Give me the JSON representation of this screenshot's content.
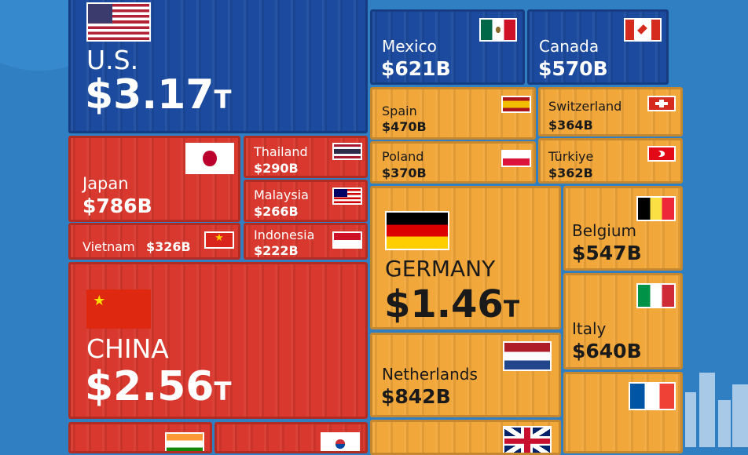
{
  "chart_data": {
    "type": "treemap",
    "items": [
      {
        "country": "U.S.",
        "value": "$3.17T",
        "value_num": 3.17,
        "unit": "T"
      },
      {
        "country": "Mexico",
        "value": "$621B",
        "value_num": 621,
        "unit": "B"
      },
      {
        "country": "Canada",
        "value": "$570B",
        "value_num": 570,
        "unit": "B"
      },
      {
        "country": "Spain",
        "value": "$470B",
        "value_num": 470,
        "unit": "B"
      },
      {
        "country": "Switzerland",
        "value": "$364B",
        "value_num": 364,
        "unit": "B"
      },
      {
        "country": "Poland",
        "value": "$370B",
        "value_num": 370,
        "unit": "B"
      },
      {
        "country": "Türkiye",
        "value": "$362B",
        "value_num": 362,
        "unit": "B"
      },
      {
        "country": "Japan",
        "value": "$786B",
        "value_num": 786,
        "unit": "B"
      },
      {
        "country": "Thailand",
        "value": "$290B",
        "value_num": 290,
        "unit": "B"
      },
      {
        "country": "Malaysia",
        "value": "$266B",
        "value_num": 266,
        "unit": "B"
      },
      {
        "country": "Indonesia",
        "value": "$222B",
        "value_num": 222,
        "unit": "B"
      },
      {
        "country": "Vietnam",
        "value": "$326B",
        "value_num": 326,
        "unit": "B"
      },
      {
        "country": "GERMANY",
        "value": "$1.46T",
        "value_num": 1.46,
        "unit": "T"
      },
      {
        "country": "Belgium",
        "value": "$547B",
        "value_num": 547,
        "unit": "B"
      },
      {
        "country": "Italy",
        "value": "$640B",
        "value_num": 640,
        "unit": "B"
      },
      {
        "country": "CHINA",
        "value": "$2.56T",
        "value_num": 2.56,
        "unit": "T"
      },
      {
        "country": "Netherlands",
        "value": "$842B",
        "value_num": 842,
        "unit": "B"
      }
    ],
    "region_colors": {
      "north_america": "#1b4a9e",
      "asia": "#d8382d",
      "europe": "#f2a73a"
    }
  },
  "flags": {
    "us": "us-flag-icon",
    "mexico": "mexico-flag-icon",
    "canada": "canada-flag-icon",
    "spain": "spain-flag-icon",
    "switzerland": "switzerland-flag-icon",
    "poland": "poland-flag-icon",
    "turkiye": "turkiye-flag-icon",
    "japan": "japan-flag-icon",
    "thailand": "thailand-flag-icon",
    "malaysia": "malaysia-flag-icon",
    "indonesia": "indonesia-flag-icon",
    "vietnam": "vietnam-flag-icon",
    "china": "china-flag-icon",
    "germany": "germany-flag-icon",
    "belgium": "belgium-flag-icon",
    "italy": "italy-flag-icon",
    "netherlands": "netherlands-flag-icon",
    "france": "france-flag-icon",
    "india": "india-flag-icon",
    "south_korea": "south-korea-flag-icon",
    "uk": "uk-flag-icon"
  }
}
